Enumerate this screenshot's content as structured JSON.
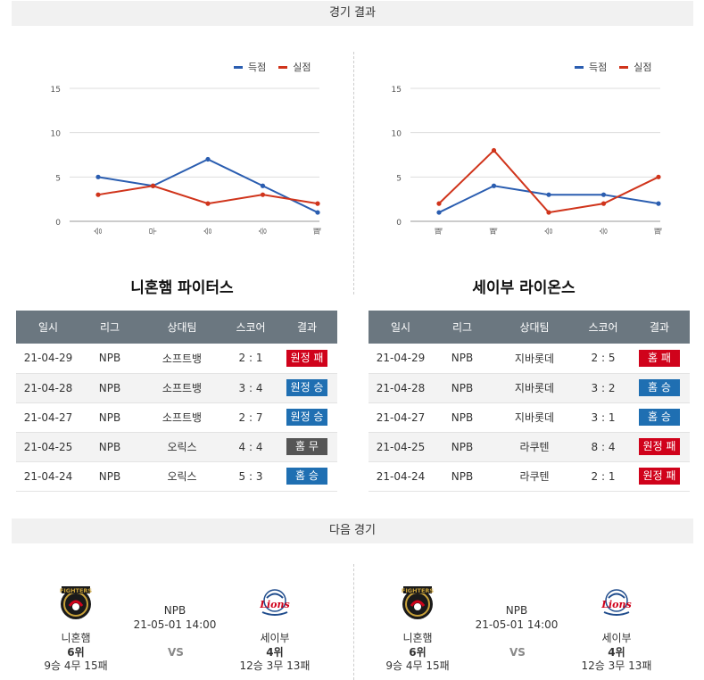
{
  "sections": {
    "results_title": "경기 결과",
    "next_title": "다음 경기"
  },
  "legend": {
    "scored": "득점",
    "allowed": "실점",
    "scored_color": "#2a5db0",
    "allowed_color": "#d0341b"
  },
  "chart_data": [
    {
      "type": "line",
      "categories": [
        "승",
        "무",
        "승",
        "승",
        "패"
      ],
      "ylim": [
        0,
        15
      ],
      "yticks": [
        "15",
        "10",
        "5",
        "0"
      ],
      "series": [
        {
          "name": "득점",
          "values": [
            5,
            4,
            7,
            4,
            1
          ]
        },
        {
          "name": "실점",
          "values": [
            3,
            4,
            2,
            3,
            2
          ]
        }
      ]
    },
    {
      "type": "line",
      "categories": [
        "패",
        "패",
        "승",
        "승",
        "패"
      ],
      "ylim": [
        0,
        15
      ],
      "yticks": [
        "15",
        "10",
        "5",
        "0"
      ],
      "series": [
        {
          "name": "득점",
          "values": [
            1,
            4,
            3,
            3,
            2
          ]
        },
        {
          "name": "실점",
          "values": [
            2,
            8,
            1,
            2,
            5
          ]
        }
      ]
    }
  ],
  "columns": [
    "일시",
    "리그",
    "상대팀",
    "스코어",
    "결과"
  ],
  "teams": [
    {
      "name": "니혼햄 파이터스",
      "rows": [
        {
          "date": "21-04-29",
          "league": "NPB",
          "opp": "소프트뱅",
          "score": "2 : 1",
          "result": "원정 패",
          "color": "red"
        },
        {
          "date": "21-04-28",
          "league": "NPB",
          "opp": "소프트뱅",
          "score": "3 : 4",
          "result": "원정 승",
          "color": "blue"
        },
        {
          "date": "21-04-27",
          "league": "NPB",
          "opp": "소프트뱅",
          "score": "2 : 7",
          "result": "원정 승",
          "color": "blue"
        },
        {
          "date": "21-04-25",
          "league": "NPB",
          "opp": "오릭스",
          "score": "4 : 4",
          "result": "홈 무",
          "color": "gray"
        },
        {
          "date": "21-04-24",
          "league": "NPB",
          "opp": "오릭스",
          "score": "5 : 3",
          "result": "홈 승",
          "color": "blue"
        }
      ]
    },
    {
      "name": "세이부 라이온스",
      "rows": [
        {
          "date": "21-04-29",
          "league": "NPB",
          "opp": "지바롯데",
          "score": "2 : 5",
          "result": "홈 패",
          "color": "red"
        },
        {
          "date": "21-04-28",
          "league": "NPB",
          "opp": "지바롯데",
          "score": "3 : 2",
          "result": "홈 승",
          "color": "blue"
        },
        {
          "date": "21-04-27",
          "league": "NPB",
          "opp": "지바롯데",
          "score": "3 : 1",
          "result": "홈 승",
          "color": "blue"
        },
        {
          "date": "21-04-25",
          "league": "NPB",
          "opp": "라쿠텐",
          "score": "8 : 4",
          "result": "원정 패",
          "color": "red"
        },
        {
          "date": "21-04-24",
          "league": "NPB",
          "opp": "라쿠텐",
          "score": "2 : 1",
          "result": "원정 패",
          "color": "red"
        }
      ]
    }
  ],
  "next_games": [
    {
      "league": "NPB",
      "datetime": "21-05-01 14:00",
      "vs": "VS",
      "home": {
        "name": "니혼햄",
        "rank": "6위",
        "record": "9승 4무 15패"
      },
      "away": {
        "name": "세이부",
        "rank": "4위",
        "record": "12승 3무 13패"
      }
    },
    {
      "league": "NPB",
      "datetime": "21-05-01 14:00",
      "vs": "VS",
      "home": {
        "name": "니혼햄",
        "rank": "6위",
        "record": "9승 4무 15패"
      },
      "away": {
        "name": "세이부",
        "rank": "4위",
        "record": "12승 3무 13패"
      }
    }
  ],
  "logos": {
    "fighters_text": "FIGHTERS",
    "lions_text": "Lions"
  }
}
